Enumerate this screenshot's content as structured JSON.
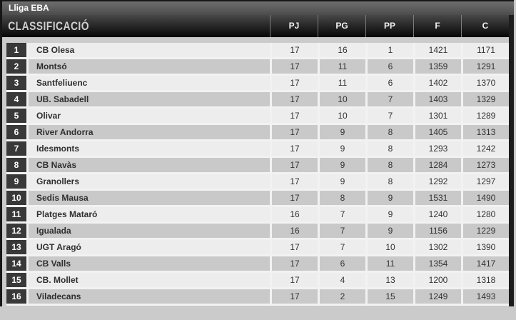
{
  "widget": {
    "title": "Lliga EBA",
    "section_title": "CLASSIFICACIÓ"
  },
  "table": {
    "columns": [
      "PJ",
      "PG",
      "PP",
      "F",
      "C"
    ],
    "standings": [
      {
        "rank": "1",
        "team": "CB Olesa",
        "pj": "17",
        "pg": "16",
        "pp": "1",
        "f": "1421",
        "c": "1171"
      },
      {
        "rank": "2",
        "team": "Montsó",
        "pj": "17",
        "pg": "11",
        "pp": "6",
        "f": "1359",
        "c": "1291"
      },
      {
        "rank": "3",
        "team": "Santfeliuenc",
        "pj": "17",
        "pg": "11",
        "pp": "6",
        "f": "1402",
        "c": "1370"
      },
      {
        "rank": "4",
        "team": "UB. Sabadell",
        "pj": "17",
        "pg": "10",
        "pp": "7",
        "f": "1403",
        "c": "1329"
      },
      {
        "rank": "5",
        "team": "Olivar",
        "pj": "17",
        "pg": "10",
        "pp": "7",
        "f": "1301",
        "c": "1289"
      },
      {
        "rank": "6",
        "team": "River Andorra",
        "pj": "17",
        "pg": "9",
        "pp": "8",
        "f": "1405",
        "c": "1313"
      },
      {
        "rank": "7",
        "team": "Idesmonts",
        "pj": "17",
        "pg": "9",
        "pp": "8",
        "f": "1293",
        "c": "1242"
      },
      {
        "rank": "8",
        "team": "CB Navàs",
        "pj": "17",
        "pg": "9",
        "pp": "8",
        "f": "1284",
        "c": "1273"
      },
      {
        "rank": "9",
        "team": "Granollers",
        "pj": "17",
        "pg": "9",
        "pp": "8",
        "f": "1292",
        "c": "1297"
      },
      {
        "rank": "10",
        "team": "Sedis Mausa",
        "pj": "17",
        "pg": "8",
        "pp": "9",
        "f": "1531",
        "c": "1490"
      },
      {
        "rank": "11",
        "team": "Platges Mataró",
        "pj": "16",
        "pg": "7",
        "pp": "9",
        "f": "1240",
        "c": "1280"
      },
      {
        "rank": "12",
        "team": "Igualada",
        "pj": "16",
        "pg": "7",
        "pp": "9",
        "f": "1156",
        "c": "1229"
      },
      {
        "rank": "13",
        "team": "UGT Aragó",
        "pj": "17",
        "pg": "7",
        "pp": "10",
        "f": "1302",
        "c": "1390"
      },
      {
        "rank": "14",
        "team": "CB Valls",
        "pj": "17",
        "pg": "6",
        "pp": "11",
        "f": "1354",
        "c": "1417"
      },
      {
        "rank": "15",
        "team": "CB. Mollet",
        "pj": "17",
        "pg": "4",
        "pp": "13",
        "f": "1200",
        "c": "1318"
      },
      {
        "rank": "16",
        "team": "Viladecans",
        "pj": "17",
        "pg": "2",
        "pp": "15",
        "f": "1249",
        "c": "1493"
      }
    ]
  },
  "colors": {
    "page_background": "#cbcbcb",
    "frame_border": "#1c1c1c",
    "titlebar_top": "#6e6e6e",
    "titlebar_bottom": "#4c4c4c",
    "headerbar_top": "#474747",
    "headerbar_bottom": "#060606",
    "rank_badge": "#393939",
    "row_light": "#ededed",
    "row_dark": "#c9c9c9",
    "separator": "#f2f2f2"
  }
}
